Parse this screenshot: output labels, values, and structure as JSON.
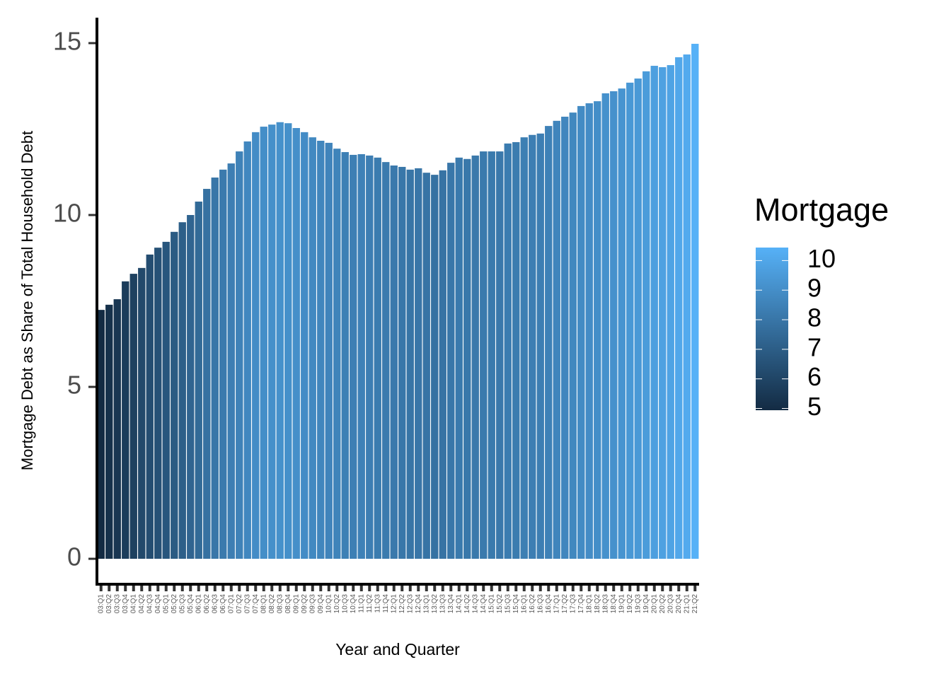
{
  "chart_data": {
    "type": "bar",
    "x_label": "Year and Quarter",
    "y_label": "Mortgage Debt as Share of Total Household Debt",
    "categories": [
      "03:Q1",
      "03:Q2",
      "03:Q3",
      "03:Q4",
      "04:Q1",
      "04:Q2",
      "04:Q3",
      "04:Q4",
      "05:Q1",
      "05:Q2",
      "05:Q3",
      "05:Q4",
      "06:Q1",
      "06:Q2",
      "06:Q3",
      "06:Q4",
      "07:Q1",
      "07:Q2",
      "07:Q3",
      "07:Q4",
      "08:Q1",
      "08:Q2",
      "08:Q3",
      "08:Q4",
      "09:Q1",
      "09:Q2",
      "09:Q3",
      "09:Q4",
      "10:Q1",
      "10:Q2",
      "10:Q3",
      "10:Q4",
      "11:Q1",
      "11:Q2",
      "11:Q3",
      "11:Q4",
      "12:Q1",
      "12:Q2",
      "12:Q3",
      "12:Q4",
      "13:Q1",
      "13:Q2",
      "13:Q3",
      "13:Q4",
      "14:Q1",
      "14:Q2",
      "14:Q3",
      "14:Q4",
      "15:Q1",
      "15:Q2",
      "15:Q3",
      "15:Q4",
      "16:Q1",
      "16:Q2",
      "16:Q3",
      "16:Q4",
      "17:Q1",
      "17:Q2",
      "17:Q3",
      "17:Q4",
      "18:Q1",
      "18:Q2",
      "18:Q3",
      "18:Q4",
      "19:Q1",
      "19:Q2",
      "19:Q3",
      "19:Q4",
      "20:Q1",
      "20:Q2",
      "20:Q3",
      "20:Q4",
      "21:Q1",
      "21:Q2"
    ],
    "values": [
      7.24,
      7.39,
      7.55,
      8.07,
      8.29,
      8.46,
      8.85,
      9.05,
      9.22,
      9.51,
      9.79,
      10.0,
      10.39,
      10.76,
      11.09,
      11.32,
      11.5,
      11.85,
      12.14,
      12.41,
      12.57,
      12.63,
      12.7,
      12.67,
      12.53,
      12.41,
      12.26,
      12.16,
      12.1,
      11.93,
      11.83,
      11.75,
      11.77,
      11.73,
      11.67,
      11.54,
      11.44,
      11.4,
      11.32,
      11.36,
      11.23,
      11.17,
      11.3,
      11.52,
      11.67,
      11.63,
      11.73,
      11.85,
      11.85,
      11.85,
      12.08,
      12.12,
      12.26,
      12.33,
      12.37,
      12.59,
      12.74,
      12.86,
      12.98,
      13.17,
      13.25,
      13.31,
      13.54,
      13.6,
      13.68,
      13.85,
      13.97,
      14.18,
      14.34,
      14.3,
      14.36,
      14.59,
      14.67,
      14.98
    ],
    "fill_values": [
      4.94,
      5.18,
      5.41,
      5.68,
      5.84,
      6.17,
      6.34,
      6.5,
      6.7,
      6.89,
      7.08,
      7.28,
      7.52,
      7.82,
      8.02,
      8.19,
      8.36,
      8.52,
      8.73,
      8.93,
      9.0,
      9.07,
      9.11,
      9.08,
      9.04,
      8.93,
      8.79,
      8.68,
      8.61,
      8.58,
      8.42,
      8.4,
      8.47,
      8.36,
      8.25,
      8.21,
      8.16,
      8.05,
      7.98,
      8.03,
      7.93,
      7.84,
      7.9,
      8.05,
      8.17,
      8.1,
      8.13,
      8.17,
      8.17,
      8.12,
      8.26,
      8.25,
      8.37,
      8.36,
      8.35,
      8.48,
      8.63,
      8.69,
      8.74,
      8.88,
      8.94,
      9.0,
      9.14,
      9.12,
      9.24,
      9.41,
      9.44,
      9.56,
      9.71,
      9.78,
      9.86,
      10.04,
      10.16,
      10.44
    ],
    "legend_title": "Mortgage",
    "fill_colors": [
      "#132B43",
      "#56B1F7"
    ],
    "fill_lim": [
      4.94,
      10.44
    ],
    "fill_ticks": [
      5,
      6,
      7,
      8,
      9,
      10
    ],
    "ylim": [
      -0.74,
      15.74
    ],
    "yticks": [
      0,
      5,
      10,
      15
    ]
  }
}
